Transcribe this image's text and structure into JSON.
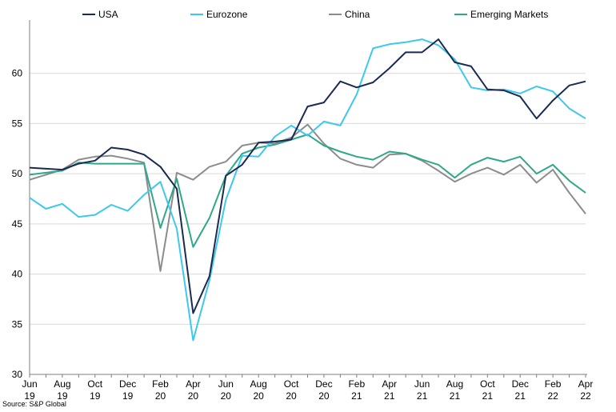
{
  "chart_data": {
    "type": "line",
    "title": "",
    "xlabel": "",
    "ylabel": "",
    "ylim": [
      30,
      65
    ],
    "yticks": [
      30,
      35,
      40,
      45,
      50,
      55,
      60
    ],
    "grid": "horizontal",
    "legend": "top",
    "x": [
      "Jun 19",
      "Jul 19",
      "Aug 19",
      "Sep 19",
      "Oct 19",
      "Nov 19",
      "Dec 19",
      "Jan 20",
      "Feb 20",
      "Mar 20",
      "Apr 20",
      "May 20",
      "Jun 20",
      "Jul 20",
      "Aug 20",
      "Sep 20",
      "Oct 20",
      "Nov 20",
      "Dec 20",
      "Jan 21",
      "Feb 21",
      "Mar 21",
      "Apr 21",
      "May 21",
      "Jun 21",
      "Jul 21",
      "Aug 21",
      "Sep 21",
      "Oct 21",
      "Nov 21",
      "Dec 21",
      "Jan 22",
      "Feb 22",
      "Mar 22",
      "Apr 22"
    ],
    "x_tick_labels": [
      {
        "top": "Jun",
        "bottom": "19"
      },
      {
        "top": "Aug",
        "bottom": "19"
      },
      {
        "top": "Oct",
        "bottom": "19"
      },
      {
        "top": "Dec",
        "bottom": "19"
      },
      {
        "top": "Feb",
        "bottom": "20"
      },
      {
        "top": "Apr",
        "bottom": "20"
      },
      {
        "top": "Jun",
        "bottom": "20"
      },
      {
        "top": "Aug",
        "bottom": "20"
      },
      {
        "top": "Oct",
        "bottom": "20"
      },
      {
        "top": "Dec",
        "bottom": "20"
      },
      {
        "top": "Feb",
        "bottom": "21"
      },
      {
        "top": "Apr",
        "bottom": "21"
      },
      {
        "top": "Jun",
        "bottom": "21"
      },
      {
        "top": "Aug",
        "bottom": "21"
      },
      {
        "top": "Oct",
        "bottom": "21"
      },
      {
        "top": "Dec",
        "bottom": "21"
      },
      {
        "top": "Feb",
        "bottom": "22"
      },
      {
        "top": "Apr",
        "bottom": "22"
      }
    ],
    "series": [
      {
        "name": "USA",
        "color": "#1b2a52",
        "values": [
          50.6,
          50.5,
          50.4,
          51.0,
          51.3,
          52.6,
          52.4,
          51.9,
          50.7,
          48.5,
          36.1,
          39.8,
          49.8,
          50.9,
          53.1,
          53.2,
          53.4,
          56.7,
          57.1,
          59.2,
          58.6,
          59.1,
          60.5,
          62.1,
          62.1,
          63.4,
          61.1,
          60.7,
          58.4,
          58.3,
          57.7,
          55.5,
          57.3,
          58.8,
          59.2
        ]
      },
      {
        "name": "Eurozone",
        "color": "#3cc8ef",
        "values": [
          47.6,
          46.5,
          47.0,
          45.7,
          45.9,
          46.9,
          46.3,
          47.9,
          49.2,
          44.5,
          33.4,
          39.4,
          47.4,
          51.8,
          51.7,
          53.7,
          54.8,
          53.8,
          55.2,
          54.8,
          57.9,
          62.5,
          62.9,
          63.1,
          63.4,
          62.8,
          61.4,
          58.6,
          58.3,
          58.4,
          58.0,
          58.7,
          58.2,
          56.5,
          55.5
        ]
      },
      {
        "name": "China",
        "color": "#8c8c8c",
        "values": [
          49.4,
          49.9,
          50.4,
          51.4,
          51.7,
          51.8,
          51.5,
          51.1,
          40.3,
          50.1,
          49.4,
          50.7,
          51.2,
          52.8,
          53.1,
          53.0,
          53.6,
          54.9,
          53.0,
          51.5,
          50.9,
          50.6,
          51.9,
          52.0,
          51.3,
          50.3,
          49.2,
          50.0,
          50.6,
          49.9,
          50.9,
          49.1,
          50.4,
          48.1,
          46.0
        ]
      },
      {
        "name": "Emerging Markets",
        "color": "#2ea88a",
        "values": [
          49.9,
          50.1,
          50.3,
          51.1,
          51.0,
          51.0,
          51.0,
          51.0,
          44.6,
          49.5,
          42.7,
          45.6,
          49.8,
          52.0,
          52.6,
          52.9,
          53.4,
          53.9,
          52.8,
          52.2,
          51.7,
          51.4,
          52.2,
          52.0,
          51.4,
          50.9,
          49.6,
          50.9,
          51.6,
          51.2,
          51.7,
          50.0,
          50.9,
          49.3,
          48.1
        ]
      }
    ]
  },
  "source": "Source: S&P Global"
}
